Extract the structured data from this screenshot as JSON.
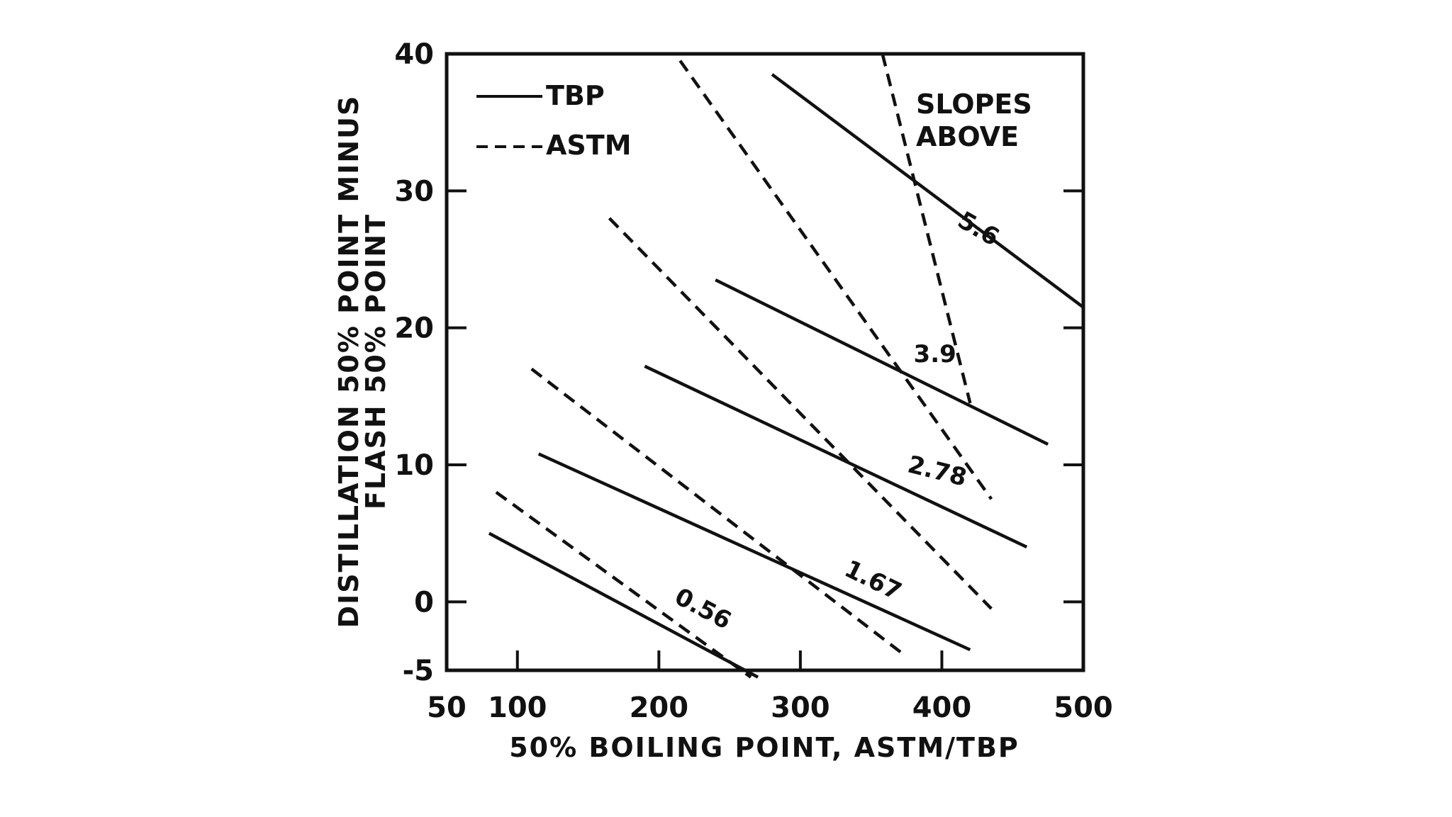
{
  "chart_data": {
    "type": "line",
    "xlabel": "50% BOILING POINT, ASTM/TBP",
    "ylabel_line1": "DISTILLATION 50% POINT MINUS",
    "ylabel_line2": "FLASH 50% POINT",
    "x_ticks": [
      "50",
      "100",
      "200",
      "300",
      "400",
      "500"
    ],
    "y_ticks": [
      "-5",
      "0",
      "10",
      "20",
      "30",
      "40"
    ],
    "xlim": [
      50,
      500
    ],
    "ylim": [
      -5,
      40
    ],
    "grid": false,
    "legend_position": "top-left",
    "legend": [
      {
        "label": "TBP",
        "style": "solid"
      },
      {
        "label": "ASTM",
        "style": "dashed"
      }
    ],
    "annotation": "SLOPES\nABOVE",
    "series": [
      {
        "label": "0.56",
        "style": "solid",
        "points": [
          [
            80,
            5
          ],
          [
            270,
            -5.5
          ]
        ]
      },
      {
        "label": "0.56",
        "style": "dashed",
        "points": [
          [
            85,
            8
          ],
          [
            265,
            -5.5
          ]
        ]
      },
      {
        "label": "1.67",
        "style": "solid",
        "points": [
          [
            115,
            10.8
          ],
          [
            420,
            -3.5
          ]
        ]
      },
      {
        "label": "1.67",
        "style": "dashed",
        "points": [
          [
            110,
            17
          ],
          [
            375,
            -4
          ]
        ]
      },
      {
        "label": "2.78",
        "style": "solid",
        "points": [
          [
            190,
            17.2
          ],
          [
            460,
            4
          ]
        ]
      },
      {
        "label": "2.78",
        "style": "dashed",
        "points": [
          [
            165,
            28
          ],
          [
            435,
            -0.5
          ]
        ]
      },
      {
        "label": "3.9",
        "style": "solid",
        "points": [
          [
            240,
            23.5
          ],
          [
            475,
            11.5
          ]
        ]
      },
      {
        "label": "3.9",
        "style": "dashed",
        "points": [
          [
            215,
            39.5
          ],
          [
            435,
            7.5
          ]
        ]
      },
      {
        "label": "5.6",
        "style": "solid",
        "points": [
          [
            280,
            38.5
          ],
          [
            500,
            21.5
          ]
        ]
      },
      {
        "label": "5.6",
        "style": "dashed",
        "points": [
          [
            358,
            40
          ],
          [
            420,
            14.5
          ]
        ]
      }
    ],
    "line_labels": [
      {
        "text": "0.56",
        "x": 210,
        "y": 0,
        "angle": 28
      },
      {
        "text": "1.67",
        "x": 330,
        "y": 2,
        "angle": 26
      },
      {
        "text": "2.78",
        "x": 375,
        "y": 9.5,
        "angle": 14
      },
      {
        "text": "3.9",
        "x": 380,
        "y": 17.5,
        "angle": 0
      },
      {
        "text": "5.6",
        "x": 410,
        "y": 27.5,
        "angle": 30
      }
    ]
  }
}
